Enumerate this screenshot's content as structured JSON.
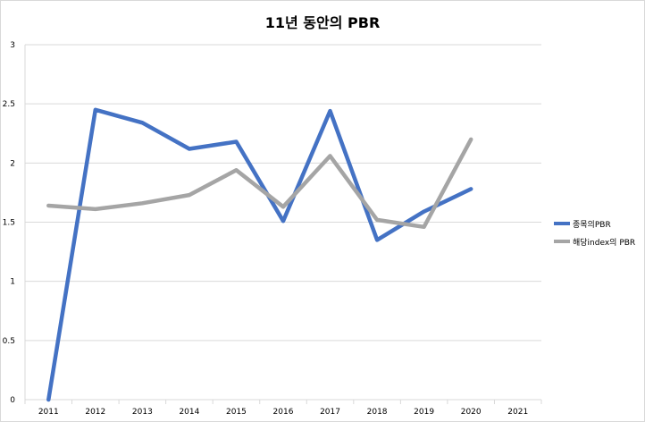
{
  "chart_data": {
    "type": "line",
    "title": "11년 동안의 PBR",
    "categories": [
      "2011",
      "2012",
      "2013",
      "2014",
      "2015",
      "2016",
      "2017",
      "2018",
      "2019",
      "2020",
      "2021"
    ],
    "ylim": [
      0,
      3
    ],
    "yticks": [
      "0",
      "0.5",
      "1",
      "1.5",
      "2",
      "2.5",
      "3"
    ],
    "grid": true,
    "legend_position": "right",
    "series": [
      {
        "name": "종목의PBR",
        "color": "#4472C4",
        "values": [
          0,
          2.45,
          2.34,
          2.12,
          2.18,
          1.51,
          2.44,
          1.35,
          1.59,
          1.78,
          null
        ]
      },
      {
        "name": "해당index의 PBR",
        "color": "#A5A5A5",
        "values": [
          1.64,
          1.61,
          1.66,
          1.73,
          1.94,
          1.63,
          2.06,
          1.52,
          1.46,
          2.2,
          null
        ]
      }
    ]
  }
}
